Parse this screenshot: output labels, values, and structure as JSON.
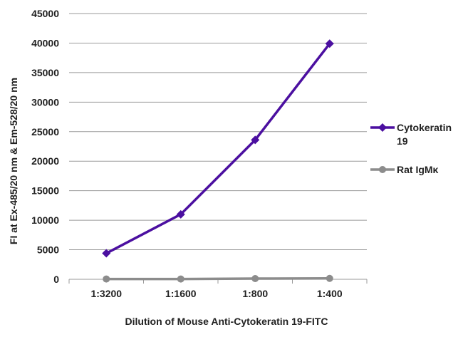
{
  "chart_data": {
    "type": "line",
    "title": "",
    "xlabel": "Dilution of Mouse Anti-Cytokeratin 19-FITC",
    "ylabel": "FI at Ex-485/20 nm & Em-528/20 nm",
    "categories": [
      "1:3200",
      "1:1600",
      "1:800",
      "1:400"
    ],
    "ylim": [
      0,
      45000
    ],
    "yticks": [
      0,
      5000,
      10000,
      15000,
      20000,
      25000,
      30000,
      35000,
      40000,
      45000
    ],
    "grid": true,
    "legend_position": "right",
    "series": [
      {
        "name": "Cytokeratin 19",
        "legend_lines": [
          "Cytokeratin",
          "19"
        ],
        "values": [
          4400,
          11000,
          23600,
          39900
        ],
        "color": "#4b0fa0",
        "marker": "diamond"
      },
      {
        "name": "Rat IgMκ",
        "legend_lines": [
          "Rat IgMκ"
        ],
        "values": [
          50,
          50,
          120,
          150
        ],
        "color": "#8c8c8c",
        "marker": "circle"
      }
    ]
  }
}
